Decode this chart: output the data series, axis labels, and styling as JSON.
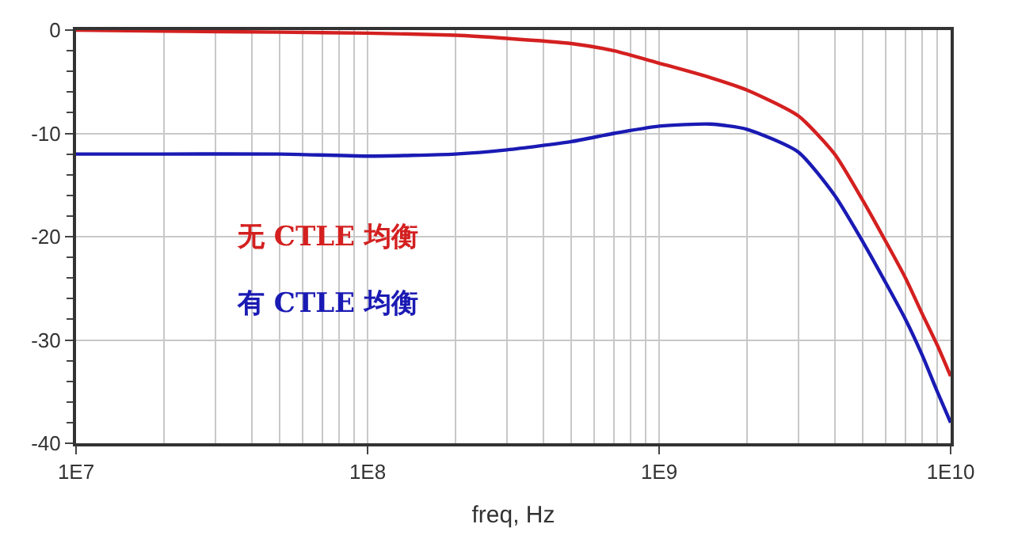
{
  "chart_data": {
    "type": "line",
    "xlabel": "freq, Hz",
    "x": [
      10000000,
      20000000,
      50000000,
      100000000,
      200000000,
      300000000,
      500000000,
      700000000,
      1000000000,
      1500000000,
      2000000000,
      3000000000,
      4000000000,
      5000000000,
      6000000000,
      7000000000,
      8000000000,
      9000000000,
      10000000000
    ],
    "series": [
      {
        "name": "无 CTLE 均衡",
        "color": "#d42020",
        "values": [
          0,
          -0.1,
          -0.2,
          -0.3,
          -0.5,
          -0.8,
          -1.3,
          -2,
          -3.2,
          -4.6,
          -5.8,
          -8.3,
          -12,
          -16.5,
          -20.5,
          -24,
          -27.5,
          -30.5,
          -33.5
        ]
      },
      {
        "name": "有 CTLE 均衡",
        "color": "#1a1ab4",
        "values": [
          -12,
          -12,
          -12,
          -12.2,
          -12,
          -11.6,
          -10.8,
          -10,
          -9.3,
          -9.1,
          -9.6,
          -11.8,
          -16,
          -20.5,
          -24.5,
          -28,
          -31.5,
          -35,
          -38
        ]
      }
    ],
    "log": "x",
    "xlim": [
      10000000,
      10000000000
    ],
    "xticks": [
      {
        "value": 10000000,
        "label": "1E7"
      },
      {
        "value": 100000000,
        "label": "1E8"
      },
      {
        "value": 1000000000,
        "label": "1E9"
      },
      {
        "value": 10000000000,
        "label": "1E10"
      }
    ],
    "ylim": [
      -40,
      0
    ],
    "yticks": [
      -40,
      -30,
      -20,
      -10,
      0
    ],
    "grid": true,
    "legend": false,
    "marker": "none",
    "line_style": "solid"
  }
}
